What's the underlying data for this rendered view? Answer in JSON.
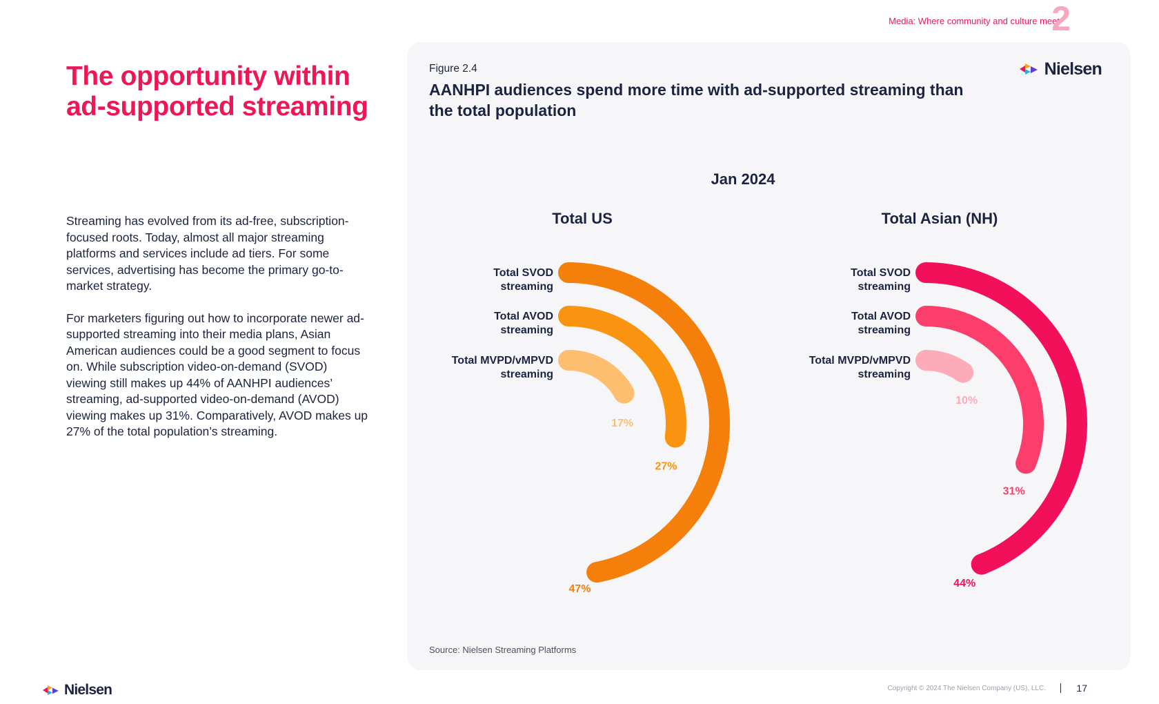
{
  "header": {
    "section_label": "Media: Where community and culture meet",
    "section_number": "2"
  },
  "page": {
    "title": "The opportunity within ad-supported streaming",
    "paragraphs": [
      "Streaming has evolved from its ad-free, subscription-focused roots. Today, almost all major streaming platforms and services include ad tiers. For some services, advertising has become the primary go-to-market strategy.",
      "For marketers figuring out how to incorporate newer ad-supported streaming into their media plans, Asian American audiences could be a good segment to focus on. While subscription video-on-demand (SVOD) viewing still makes up 44% of AANHPI audiences’ streaming, ad-supported video-on-demand (AVOD) viewing makes up 31%. Comparatively, AVOD makes up 27% of the total population’s streaming."
    ]
  },
  "figure": {
    "label": "Figure 2.4",
    "title": "AANHPI audiences spend more time with ad-supported streaming than the total population",
    "source": "Source: Nielsen Streaming Platforms",
    "brand": "Nielsen"
  },
  "chart_data": {
    "type": "radial-bar",
    "title": "Jan 2024",
    "unit": "%",
    "categories": [
      "Total SVOD streaming",
      "Total AVOD streaming",
      "Total MVPD/vMPVD streaming"
    ],
    "panels": [
      {
        "name": "Total US",
        "values": [
          47,
          27,
          17
        ],
        "value_labels": [
          "47%",
          "27%",
          "17%"
        ],
        "colors": [
          "#f57f0b",
          "#fa930f",
          "#fdbe6f"
        ]
      },
      {
        "name": "Total Asian (NH)",
        "values": [
          44,
          31,
          10
        ],
        "value_labels": [
          "44%",
          "31%",
          "10%"
        ],
        "colors": [
          "#f2105a",
          "#fb3e6c",
          "#fdaab9"
        ]
      }
    ]
  },
  "footer": {
    "brand": "Nielsen",
    "copyright": "Copyright © 2024 The Nielsen Company (US), LLC.",
    "page_number": "17"
  }
}
